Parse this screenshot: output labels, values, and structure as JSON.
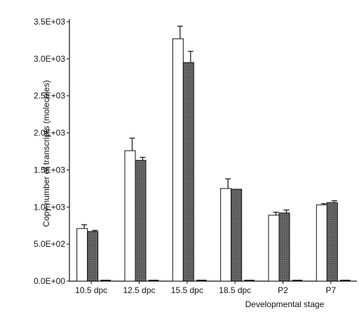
{
  "chart_data": {
    "type": "bar",
    "title": "",
    "xlabel": "Developmental stage",
    "ylabel": "Copy number of transcripts (molecules)",
    "categories": [
      "10.5 dpc",
      "12.5 dpc",
      "15.5 dpc",
      "18.5 dpc",
      "P2",
      "P7"
    ],
    "ylim": [
      0,
      3500
    ],
    "yticks": [
      {
        "value": 0,
        "label": "0.0E+00"
      },
      {
        "value": 500,
        "label": "5.0E+02"
      },
      {
        "value": 1000,
        "label": "1.0E+03"
      },
      {
        "value": 1500,
        "label": "1.5E+03"
      },
      {
        "value": 2000,
        "label": "2.0E+03"
      },
      {
        "value": 2500,
        "label": "2.5E+03"
      },
      {
        "value": 3000,
        "label": "3.0E+03"
      },
      {
        "value": 3500,
        "label": "3.5E+03"
      }
    ],
    "grid": false,
    "legend": "none",
    "series": [
      {
        "color": "#ffffff",
        "values": [
          710,
          1760,
          3270,
          1250,
          890,
          1030
        ],
        "errors": [
          50,
          170,
          170,
          130,
          40,
          15
        ]
      },
      {
        "color": "#5a5a5a",
        "values": [
          670,
          1630,
          2950,
          1240,
          920,
          1060
        ],
        "errors": [
          15,
          40,
          150,
          0,
          40,
          25
        ]
      },
      {
        "color": "#222222",
        "values": [
          5,
          10,
          15,
          10,
          8,
          8
        ],
        "errors": [
          0,
          0,
          0,
          0,
          0,
          0
        ]
      }
    ]
  }
}
